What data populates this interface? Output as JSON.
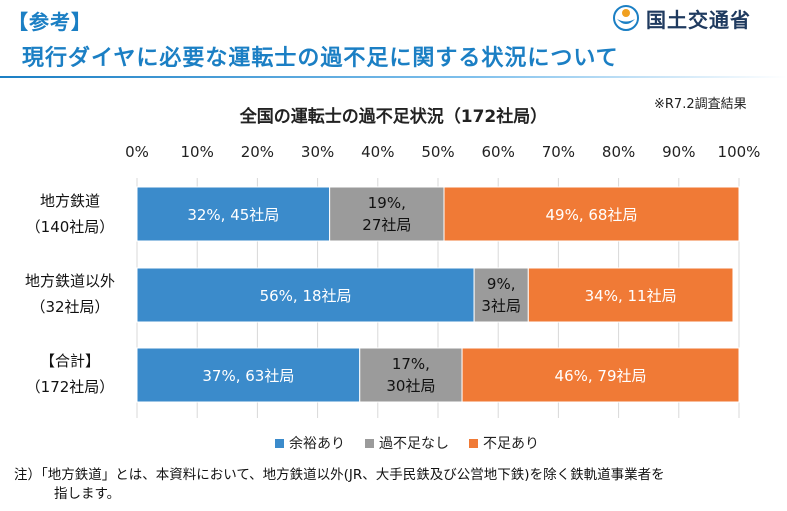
{
  "header": {
    "tag": "【参考】",
    "title": "現行ダイヤに必要な運転士の過不足に関する状況について",
    "org_name": "国土交通省"
  },
  "source_note": "※R7.2調査結果",
  "colors": {
    "title_blue": "#1b7fc4",
    "surplus": "#3b8bcb",
    "neutral": "#9b9b9b",
    "shortage": "#f07a36",
    "grid": "#d9d9d9"
  },
  "chart_data": {
    "type": "bar",
    "orientation": "horizontal",
    "stacked": true,
    "title": "全国の運転士の過不足状況（172社局）",
    "xlim": [
      0,
      100
    ],
    "ticks": [
      "0%",
      "10%",
      "20%",
      "30%",
      "40%",
      "50%",
      "60%",
      "70%",
      "80%",
      "90%",
      "100%"
    ],
    "legend_position": "bottom",
    "categories": [
      {
        "label_line1": "地方鉄道",
        "label_line2": "（140社局）"
      },
      {
        "label_line1": "地方鉄道以外",
        "label_line2": "（32社局）"
      },
      {
        "label_line1": "【合計】",
        "label_line2": "（172社局）"
      }
    ],
    "series": [
      {
        "name": "余裕あり",
        "values": [
          32,
          56,
          37
        ],
        "counts": [
          45,
          18,
          63
        ],
        "labels": [
          [
            "32%, 45社局"
          ],
          [
            "56%, 18社局"
          ],
          [
            "37%, 63社局"
          ]
        ]
      },
      {
        "name": "過不足なし",
        "values": [
          19,
          9,
          17
        ],
        "counts": [
          27,
          3,
          30
        ],
        "labels": [
          [
            "19%,",
            "27社局"
          ],
          [
            "9%,",
            "3社局"
          ],
          [
            "17%,",
            "30社局"
          ]
        ]
      },
      {
        "name": "不足あり",
        "values": [
          49,
          34,
          46
        ],
        "counts": [
          68,
          11,
          79
        ],
        "labels": [
          [
            "49%, 68社局"
          ],
          [
            "34%, 11社局"
          ],
          [
            "46%, 79社局"
          ]
        ]
      }
    ]
  },
  "footnote": {
    "line1": "注）「地方鉄道」とは、本資料において、地方鉄道以外(JR、大手民鉄及び公営地下鉄)を除く鉄軌道事業者を",
    "line2": "指します。"
  }
}
